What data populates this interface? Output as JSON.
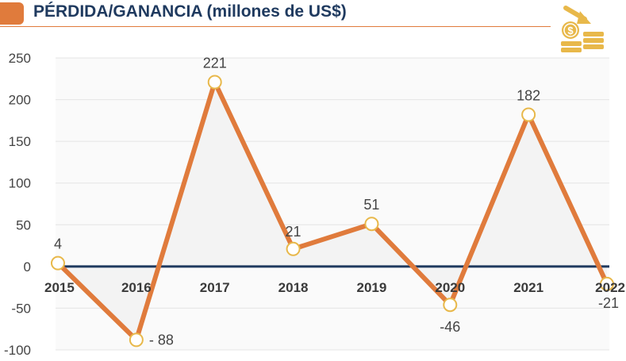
{
  "title": "PÉRDIDA/GANANCIA (millones de US$)",
  "icon": "coin-stack-down-arrow-icon",
  "colors": {
    "line": "#e07b3c",
    "zero_line": "#1f3a5f",
    "area": "#f3f3f3",
    "grid": "#e4e4e4",
    "text": "#444444",
    "gold": "#e8b84a"
  },
  "chart_data": {
    "type": "line",
    "title": "PÉRDIDA/GANANCIA (millones de US$)",
    "categories": [
      "2015",
      "2016",
      "2017",
      "2018",
      "2019",
      "2020",
      "2021",
      "2022"
    ],
    "values": [
      4,
      -88,
      221,
      21,
      51,
      -46,
      182,
      -21
    ],
    "data_labels": [
      "4",
      "- 88",
      "221",
      "21",
      "51",
      "-46",
      "182",
      "-21"
    ],
    "y_ticks": [
      "250",
      "200",
      "150",
      "100",
      "50",
      "0",
      "-50",
      "-100"
    ],
    "ylim": [
      -100,
      250
    ],
    "grid": true,
    "xlabel": "",
    "ylabel": ""
  }
}
